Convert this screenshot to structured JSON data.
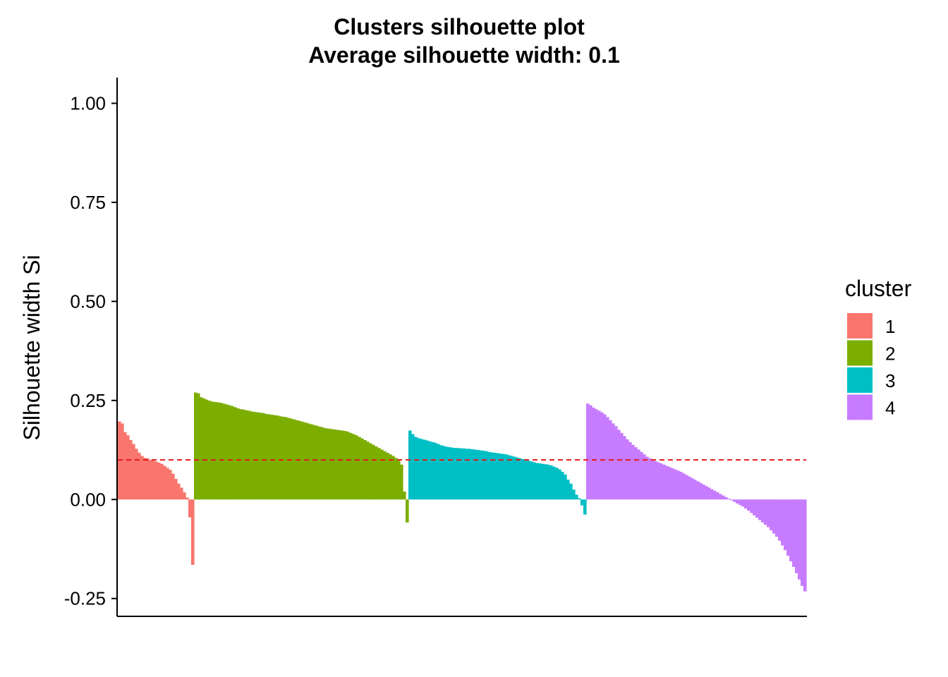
{
  "chart_data": {
    "type": "bar",
    "title": "Clusters silhouette plot",
    "subtitle": "Average silhouette width: 0.1",
    "xlabel": "",
    "ylabel": "Silhouette width Si",
    "ylim": [
      -0.295,
      1.065
    ],
    "yticks": [
      -0.25,
      0.0,
      0.25,
      0.5,
      0.75,
      1.0
    ],
    "ytick_labels": [
      "-0.25",
      "0.00",
      "0.25",
      "0.50",
      "0.75",
      "1.00"
    ],
    "grid": false,
    "average_line": {
      "value": 0.1,
      "color": "#E41A1C",
      "style": "dashed"
    },
    "legend": {
      "title": "cluster",
      "position": "right",
      "entries": [
        {
          "label": "1",
          "color": "#F8766D"
        },
        {
          "label": "2",
          "color": "#7CAE00"
        },
        {
          "label": "3",
          "color": "#00BFC4"
        },
        {
          "label": "4",
          "color": "#C77CFF"
        }
      ]
    },
    "series": [
      {
        "name": "1",
        "color": "#F8766D",
        "values": [
          0.197,
          0.192,
          0.17,
          0.162,
          0.15,
          0.14,
          0.128,
          0.118,
          0.11,
          0.105,
          0.104,
          0.1,
          0.098,
          0.096,
          0.093,
          0.09,
          0.085,
          0.08,
          0.075,
          0.065,
          0.052,
          0.04,
          0.03,
          0.018,
          0.005,
          -0.045,
          -0.165
        ]
      },
      {
        "name": "2",
        "color": "#7CAE00",
        "values": [
          0.27,
          0.268,
          0.258,
          0.255,
          0.252,
          0.249,
          0.247,
          0.246,
          0.245,
          0.244,
          0.242,
          0.24,
          0.238,
          0.236,
          0.233,
          0.23,
          0.228,
          0.227,
          0.225,
          0.224,
          0.222,
          0.221,
          0.22,
          0.219,
          0.218,
          0.216,
          0.215,
          0.214,
          0.213,
          0.212,
          0.21,
          0.209,
          0.208,
          0.206,
          0.204,
          0.202,
          0.2,
          0.198,
          0.196,
          0.194,
          0.192,
          0.19,
          0.188,
          0.186,
          0.184,
          0.182,
          0.18,
          0.179,
          0.178,
          0.177,
          0.176,
          0.175,
          0.174,
          0.173,
          0.171,
          0.168,
          0.165,
          0.162,
          0.158,
          0.154,
          0.15,
          0.146,
          0.142,
          0.138,
          0.134,
          0.13,
          0.126,
          0.122,
          0.118,
          0.114,
          0.11,
          0.105,
          0.098,
          0.088,
          0.02,
          -0.058
        ]
      },
      {
        "name": "3",
        "color": "#00BFC4",
        "values": [
          0.174,
          0.165,
          0.158,
          0.155,
          0.153,
          0.151,
          0.149,
          0.147,
          0.145,
          0.143,
          0.14,
          0.137,
          0.135,
          0.133,
          0.132,
          0.131,
          0.13,
          0.13,
          0.129,
          0.129,
          0.128,
          0.128,
          0.127,
          0.126,
          0.125,
          0.124,
          0.123,
          0.122,
          0.12,
          0.119,
          0.118,
          0.117,
          0.116,
          0.115,
          0.114,
          0.112,
          0.11,
          0.108,
          0.106,
          0.104,
          0.102,
          0.1,
          0.098,
          0.096,
          0.094,
          0.092,
          0.091,
          0.09,
          0.089,
          0.088,
          0.086,
          0.083,
          0.08,
          0.076,
          0.07,
          0.063,
          0.05,
          0.04,
          0.025,
          0.012,
          0.003,
          -0.015,
          -0.038
        ]
      },
      {
        "name": "4",
        "color": "#C77CFF",
        "values": [
          0.242,
          0.238,
          0.232,
          0.228,
          0.224,
          0.22,
          0.215,
          0.208,
          0.2,
          0.192,
          0.185,
          0.176,
          0.168,
          0.16,
          0.152,
          0.145,
          0.138,
          0.132,
          0.126,
          0.12,
          0.114,
          0.108,
          0.104,
          0.1,
          0.097,
          0.094,
          0.091,
          0.088,
          0.085,
          0.082,
          0.079,
          0.076,
          0.073,
          0.07,
          0.066,
          0.062,
          0.058,
          0.054,
          0.05,
          0.046,
          0.042,
          0.038,
          0.034,
          0.03,
          0.026,
          0.022,
          0.018,
          0.014,
          0.01,
          0.006,
          0.002,
          -0.002,
          -0.006,
          -0.01,
          -0.014,
          -0.018,
          -0.023,
          -0.028,
          -0.034,
          -0.04,
          -0.046,
          -0.052,
          -0.058,
          -0.064,
          -0.07,
          -0.078,
          -0.086,
          -0.094,
          -0.104,
          -0.116,
          -0.128,
          -0.142,
          -0.156,
          -0.17,
          -0.186,
          -0.202,
          -0.218,
          -0.232
        ]
      }
    ]
  }
}
